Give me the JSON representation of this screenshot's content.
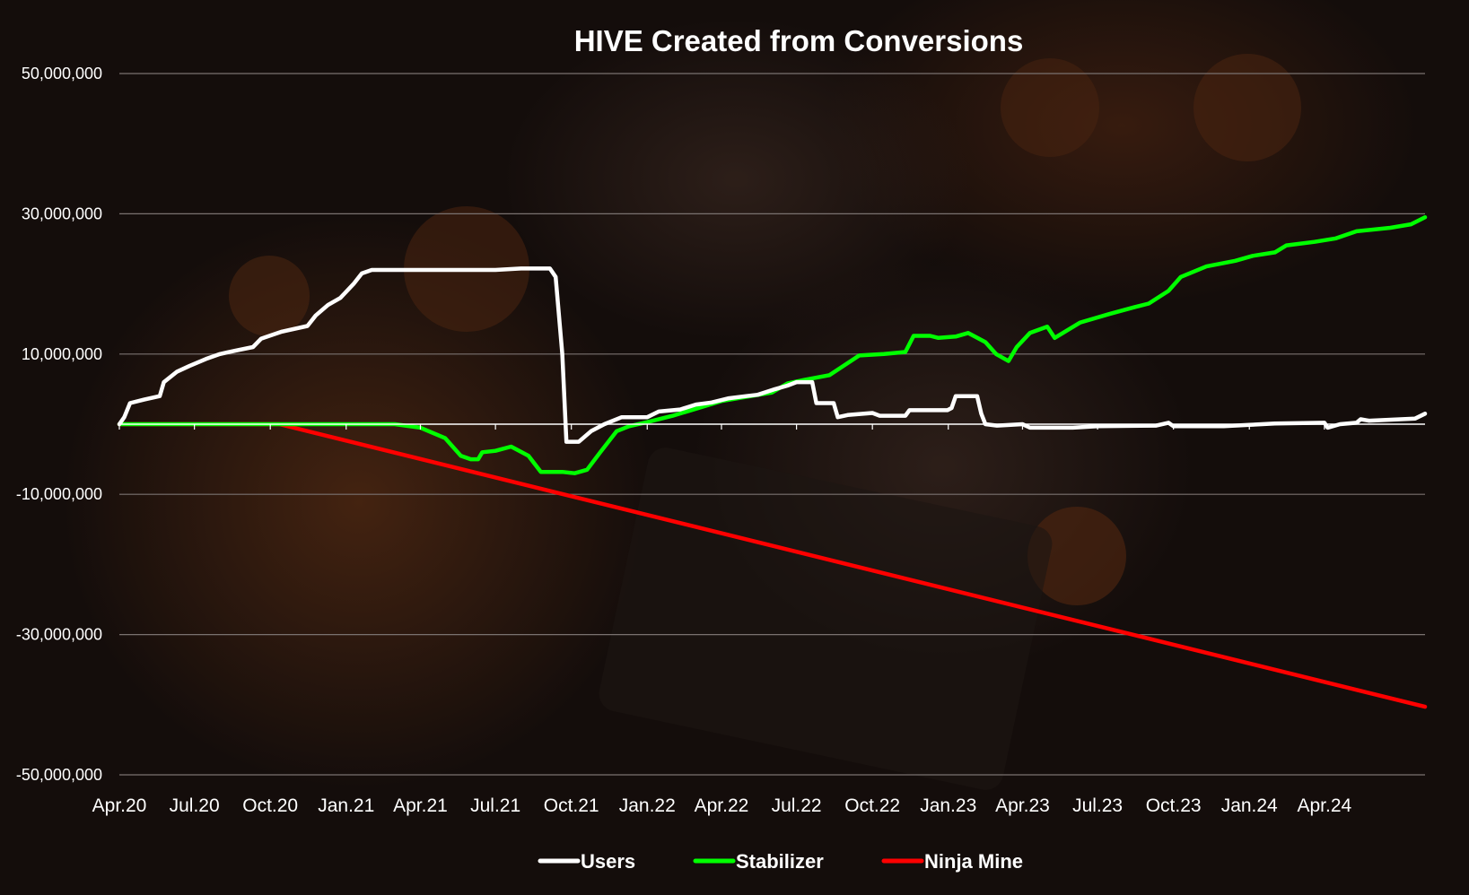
{
  "colors": {
    "background": "#140d0b",
    "grid": "#7a7270",
    "text": "#ffffff"
  },
  "chart_data": {
    "type": "line",
    "title": "HIVE Created from Conversions",
    "xlabel": "",
    "ylabel": "",
    "xlim": [
      "2020-04-01",
      "2024-08-01"
    ],
    "ylim": [
      -50000000,
      50000000
    ],
    "grid": true,
    "legend_position": "bottom",
    "x_ticks": [
      {
        "date": "2020-04-01",
        "label": "Apr.20"
      },
      {
        "date": "2020-07-01",
        "label": "Jul.20"
      },
      {
        "date": "2020-10-01",
        "label": "Oct.20"
      },
      {
        "date": "2021-01-01",
        "label": "Jan.21"
      },
      {
        "date": "2021-04-01",
        "label": "Apr.21"
      },
      {
        "date": "2021-07-01",
        "label": "Jul.21"
      },
      {
        "date": "2021-10-01",
        "label": "Oct.21"
      },
      {
        "date": "2022-01-01",
        "label": "Jan.22"
      },
      {
        "date": "2022-04-01",
        "label": "Apr.22"
      },
      {
        "date": "2022-07-01",
        "label": "Jul.22"
      },
      {
        "date": "2022-10-01",
        "label": "Oct.22"
      },
      {
        "date": "2023-01-01",
        "label": "Jan.23"
      },
      {
        "date": "2023-04-01",
        "label": "Apr.23"
      },
      {
        "date": "2023-07-01",
        "label": "Jul.23"
      },
      {
        "date": "2023-10-01",
        "label": "Oct.23"
      },
      {
        "date": "2024-01-01",
        "label": "Jan.24"
      },
      {
        "date": "2024-04-01",
        "label": "Apr.24"
      }
    ],
    "y_ticks": [
      {
        "value": 50000000,
        "label": "50,000,000"
      },
      {
        "value": 30000000,
        "label": "30,000,000"
      },
      {
        "value": 10000000,
        "label": "10,000,000"
      },
      {
        "value": -10000000,
        "label": "-10,000,000"
      },
      {
        "value": -30000000,
        "label": "-30,000,000"
      },
      {
        "value": -50000000,
        "label": "-50,000,000"
      }
    ],
    "series": [
      {
        "name": "Users",
        "color": "#ffffff",
        "points": [
          [
            "2020-04-01",
            0
          ],
          [
            "2020-04-07",
            1000000
          ],
          [
            "2020-04-14",
            3000000
          ],
          [
            "2020-05-01",
            3500000
          ],
          [
            "2020-05-20",
            4000000
          ],
          [
            "2020-05-25",
            6000000
          ],
          [
            "2020-06-10",
            7500000
          ],
          [
            "2020-06-25",
            8300000
          ],
          [
            "2020-07-15",
            9300000
          ],
          [
            "2020-08-01",
            10000000
          ],
          [
            "2020-08-20",
            10500000
          ],
          [
            "2020-09-10",
            11000000
          ],
          [
            "2020-09-20",
            12200000
          ],
          [
            "2020-10-15",
            13200000
          ],
          [
            "2020-11-15",
            14000000
          ],
          [
            "2020-11-25",
            15500000
          ],
          [
            "2020-12-10",
            17000000
          ],
          [
            "2020-12-25",
            18000000
          ],
          [
            "2021-01-10",
            20000000
          ],
          [
            "2021-01-20",
            21500000
          ],
          [
            "2021-02-01",
            22000000
          ],
          [
            "2021-04-01",
            22000000
          ],
          [
            "2021-07-01",
            22000000
          ],
          [
            "2021-08-01",
            22200000
          ],
          [
            "2021-09-05",
            22200000
          ],
          [
            "2021-09-12",
            21000000
          ],
          [
            "2021-09-20",
            10000000
          ],
          [
            "2021-09-25",
            -2500000
          ],
          [
            "2021-10-10",
            -2500000
          ],
          [
            "2021-10-25",
            -1000000
          ],
          [
            "2021-11-10",
            0
          ],
          [
            "2021-12-01",
            1000000
          ],
          [
            "2022-01-01",
            1000000
          ],
          [
            "2022-01-15",
            1800000
          ],
          [
            "2022-02-10",
            2100000
          ],
          [
            "2022-03-01",
            2800000
          ],
          [
            "2022-03-20",
            3100000
          ],
          [
            "2022-04-10",
            3700000
          ],
          [
            "2022-05-01",
            4000000
          ],
          [
            "2022-05-15",
            4200000
          ],
          [
            "2022-06-05",
            5000000
          ],
          [
            "2022-06-20",
            5500000
          ],
          [
            "2022-07-01",
            6000000
          ],
          [
            "2022-07-20",
            6000000
          ],
          [
            "2022-07-25",
            3000000
          ],
          [
            "2022-08-15",
            3000000
          ],
          [
            "2022-08-20",
            1000000
          ],
          [
            "2022-09-01",
            1300000
          ],
          [
            "2022-10-01",
            1600000
          ],
          [
            "2022-10-10",
            1200000
          ],
          [
            "2022-11-10",
            1200000
          ],
          [
            "2022-11-15",
            2000000
          ],
          [
            "2022-12-31",
            2000000
          ],
          [
            "2023-01-05",
            2300000
          ],
          [
            "2023-01-10",
            4000000
          ],
          [
            "2023-02-05",
            4000000
          ],
          [
            "2023-02-10",
            1500000
          ],
          [
            "2023-02-15",
            0
          ],
          [
            "2023-03-01",
            -200000
          ],
          [
            "2023-04-01",
            0
          ],
          [
            "2023-04-10",
            -500000
          ],
          [
            "2023-06-01",
            -500000
          ],
          [
            "2023-07-01",
            -300000
          ],
          [
            "2023-09-10",
            -200000
          ],
          [
            "2023-09-25",
            200000
          ],
          [
            "2023-10-01",
            -300000
          ],
          [
            "2023-12-01",
            -300000
          ],
          [
            "2024-01-01",
            -100000
          ],
          [
            "2024-02-01",
            100000
          ],
          [
            "2024-04-01",
            200000
          ],
          [
            "2024-04-05",
            -500000
          ],
          [
            "2024-04-20",
            0
          ],
          [
            "2024-05-10",
            200000
          ],
          [
            "2024-05-15",
            700000
          ],
          [
            "2024-05-25",
            500000
          ],
          [
            "2024-07-20",
            800000
          ],
          [
            "2024-08-01",
            1500000
          ]
        ]
      },
      {
        "name": "Stabilizer",
        "color": "#00ff00",
        "points": [
          [
            "2020-04-01",
            0
          ],
          [
            "2020-10-12",
            0
          ],
          [
            "2021-03-01",
            0
          ],
          [
            "2021-04-01",
            -500000
          ],
          [
            "2021-05-01",
            -2000000
          ],
          [
            "2021-05-20",
            -4500000
          ],
          [
            "2021-06-01",
            -5000000
          ],
          [
            "2021-06-10",
            -5000000
          ],
          [
            "2021-06-15",
            -4000000
          ],
          [
            "2021-07-01",
            -3800000
          ],
          [
            "2021-07-20",
            -3200000
          ],
          [
            "2021-08-10",
            -4500000
          ],
          [
            "2021-08-25",
            -6800000
          ],
          [
            "2021-09-20",
            -6800000
          ],
          [
            "2021-10-05",
            -7000000
          ],
          [
            "2021-10-20",
            -6500000
          ],
          [
            "2021-11-05",
            -4000000
          ],
          [
            "2021-11-25",
            -1000000
          ],
          [
            "2021-12-10",
            -300000
          ],
          [
            "2022-01-01",
            300000
          ],
          [
            "2022-02-01",
            1200000
          ],
          [
            "2022-03-01",
            2200000
          ],
          [
            "2022-04-01",
            3300000
          ],
          [
            "2022-05-01",
            3900000
          ],
          [
            "2022-06-01",
            4500000
          ],
          [
            "2022-06-20",
            5800000
          ],
          [
            "2022-07-10",
            6300000
          ],
          [
            "2022-08-10",
            7000000
          ],
          [
            "2022-09-15",
            9800000
          ],
          [
            "2022-10-15",
            10000000
          ],
          [
            "2022-11-10",
            10300000
          ],
          [
            "2022-11-20",
            12600000
          ],
          [
            "2022-12-10",
            12600000
          ],
          [
            "2022-12-20",
            12300000
          ],
          [
            "2023-01-10",
            12500000
          ],
          [
            "2023-01-25",
            13000000
          ],
          [
            "2023-02-15",
            11700000
          ],
          [
            "2023-02-28",
            10000000
          ],
          [
            "2023-03-15",
            9000000
          ],
          [
            "2023-03-25",
            11000000
          ],
          [
            "2023-04-10",
            13000000
          ],
          [
            "2023-05-01",
            13900000
          ],
          [
            "2023-05-10",
            12300000
          ],
          [
            "2023-06-10",
            14500000
          ],
          [
            "2023-07-15",
            15700000
          ],
          [
            "2023-08-15",
            16700000
          ],
          [
            "2023-09-01",
            17200000
          ],
          [
            "2023-09-25",
            19000000
          ],
          [
            "2023-10-10",
            21000000
          ],
          [
            "2023-11-10",
            22500000
          ],
          [
            "2023-12-15",
            23300000
          ],
          [
            "2024-01-05",
            24000000
          ],
          [
            "2024-02-01",
            24500000
          ],
          [
            "2024-02-15",
            25500000
          ],
          [
            "2024-03-20",
            26000000
          ],
          [
            "2024-04-15",
            26500000
          ],
          [
            "2024-05-10",
            27500000
          ],
          [
            "2024-06-20",
            28000000
          ],
          [
            "2024-07-15",
            28500000
          ],
          [
            "2024-08-01",
            29500000
          ]
        ]
      },
      {
        "name": "Ninja Mine",
        "color": "#ff0000",
        "points": [
          [
            "2020-04-01",
            0
          ],
          [
            "2020-10-12",
            0
          ],
          [
            "2024-08-01",
            -40300000
          ]
        ]
      }
    ]
  }
}
